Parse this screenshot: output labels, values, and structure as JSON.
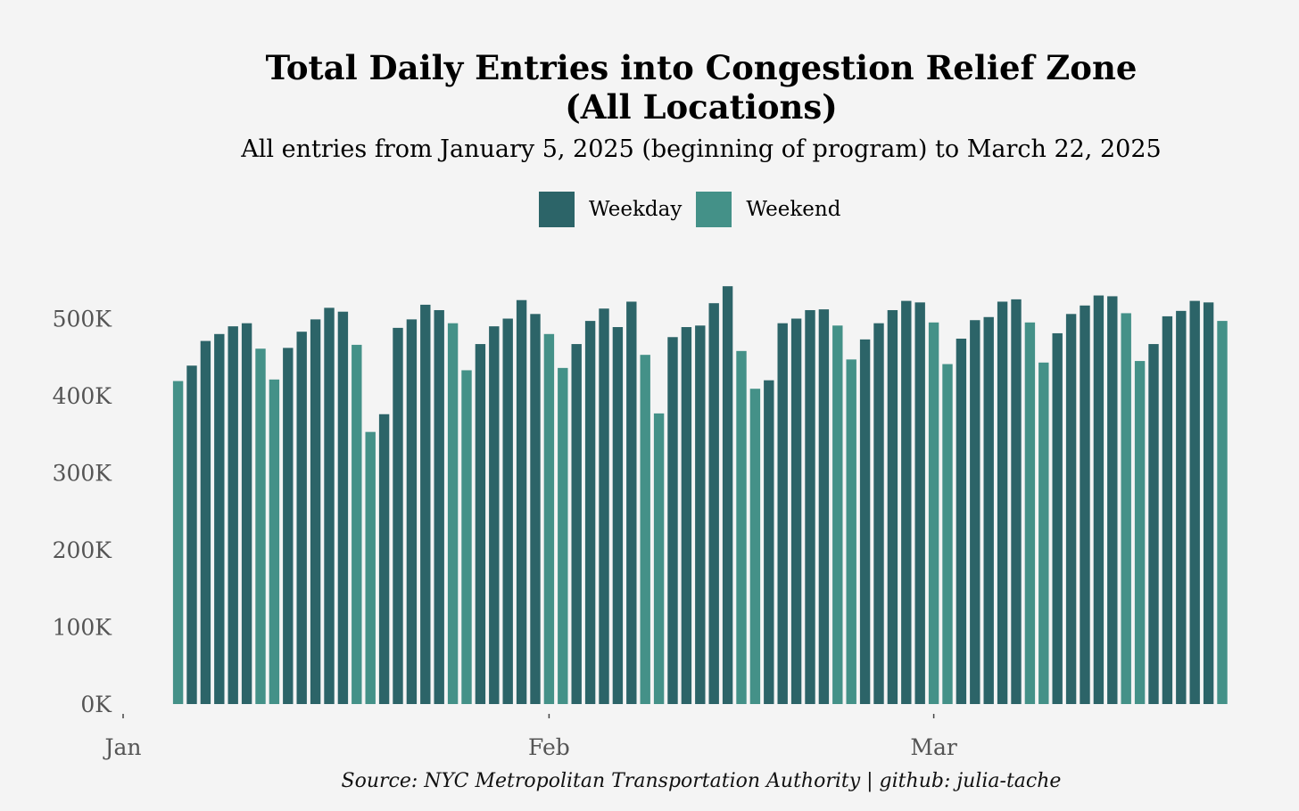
{
  "chart_data": {
    "type": "bar",
    "title": "Total Daily Entries into Congestion Relief Zone (All Locations)",
    "title_lines": [
      "Total Daily Entries into Congestion Relief Zone",
      "(All Locations)"
    ],
    "subtitle": "All entries from January 5, 2025 (beginning of program) to March 22, 2025",
    "caption": "Source: NYC Metropolitan Transportation Authority | github: julia-tache",
    "xlabel": "",
    "ylabel": "",
    "ylim": [
      0,
      560000
    ],
    "y_ticks": [
      {
        "value": 0,
        "label": "0K"
      },
      {
        "value": 100000,
        "label": "100K"
      },
      {
        "value": 200000,
        "label": "200K"
      },
      {
        "value": 300000,
        "label": "300K"
      },
      {
        "value": 400000,
        "label": "400K"
      },
      {
        "value": 500000,
        "label": "500K"
      }
    ],
    "x_ticks": [
      {
        "day": 1,
        "label": "Jan"
      },
      {
        "day": 32,
        "label": "Feb"
      },
      {
        "day": 60,
        "label": "Mar"
      }
    ],
    "start_day_of_year": 5,
    "legend": [
      {
        "name": "Weekday",
        "color": "#2c6468"
      },
      {
        "name": "Weekend",
        "color": "#449188"
      }
    ],
    "series": [
      {
        "name": "Daily entries",
        "values": [
          419000,
          439000,
          471000,
          480000,
          490000,
          494000,
          461000,
          421000,
          462000,
          483000,
          499000,
          514000,
          509000,
          466000,
          353000,
          376000,
          488000,
          499000,
          518000,
          511000,
          494000,
          433000,
          467000,
          490000,
          500000,
          524000,
          506000,
          480000,
          436000,
          467000,
          497000,
          513000,
          489000,
          522000,
          453000,
          377000,
          476000,
          489000,
          491000,
          520000,
          542000,
          458000,
          409000,
          420000,
          494000,
          500000,
          511000,
          512000,
          491000,
          447000,
          473000,
          494000,
          511000,
          523000,
          521000,
          495000,
          441000,
          474000,
          498000,
          502000,
          522000,
          525000,
          495000,
          443000,
          481000,
          506000,
          517000,
          530000,
          529000,
          507000,
          445000,
          467000,
          503000,
          510000,
          523000,
          521000,
          497000
        ],
        "day_type": [
          "Weekend",
          "Weekday",
          "Weekday",
          "Weekday",
          "Weekday",
          "Weekday",
          "Weekend",
          "Weekend",
          "Weekday",
          "Weekday",
          "Weekday",
          "Weekday",
          "Weekday",
          "Weekend",
          "Weekend",
          "Weekday",
          "Weekday",
          "Weekday",
          "Weekday",
          "Weekday",
          "Weekend",
          "Weekend",
          "Weekday",
          "Weekday",
          "Weekday",
          "Weekday",
          "Weekday",
          "Weekend",
          "Weekend",
          "Weekday",
          "Weekday",
          "Weekday",
          "Weekday",
          "Weekday",
          "Weekend",
          "Weekend",
          "Weekday",
          "Weekday",
          "Weekday",
          "Weekday",
          "Weekday",
          "Weekend",
          "Weekend",
          "Weekday",
          "Weekday",
          "Weekday",
          "Weekday",
          "Weekday",
          "Weekend",
          "Weekend",
          "Weekday",
          "Weekday",
          "Weekday",
          "Weekday",
          "Weekday",
          "Weekend",
          "Weekend",
          "Weekday",
          "Weekday",
          "Weekday",
          "Weekday",
          "Weekday",
          "Weekend",
          "Weekend",
          "Weekday",
          "Weekday",
          "Weekday",
          "Weekday",
          "Weekday",
          "Weekend",
          "Weekend",
          "Weekday",
          "Weekday",
          "Weekday",
          "Weekday",
          "Weekday",
          "Weekend"
        ]
      }
    ]
  }
}
